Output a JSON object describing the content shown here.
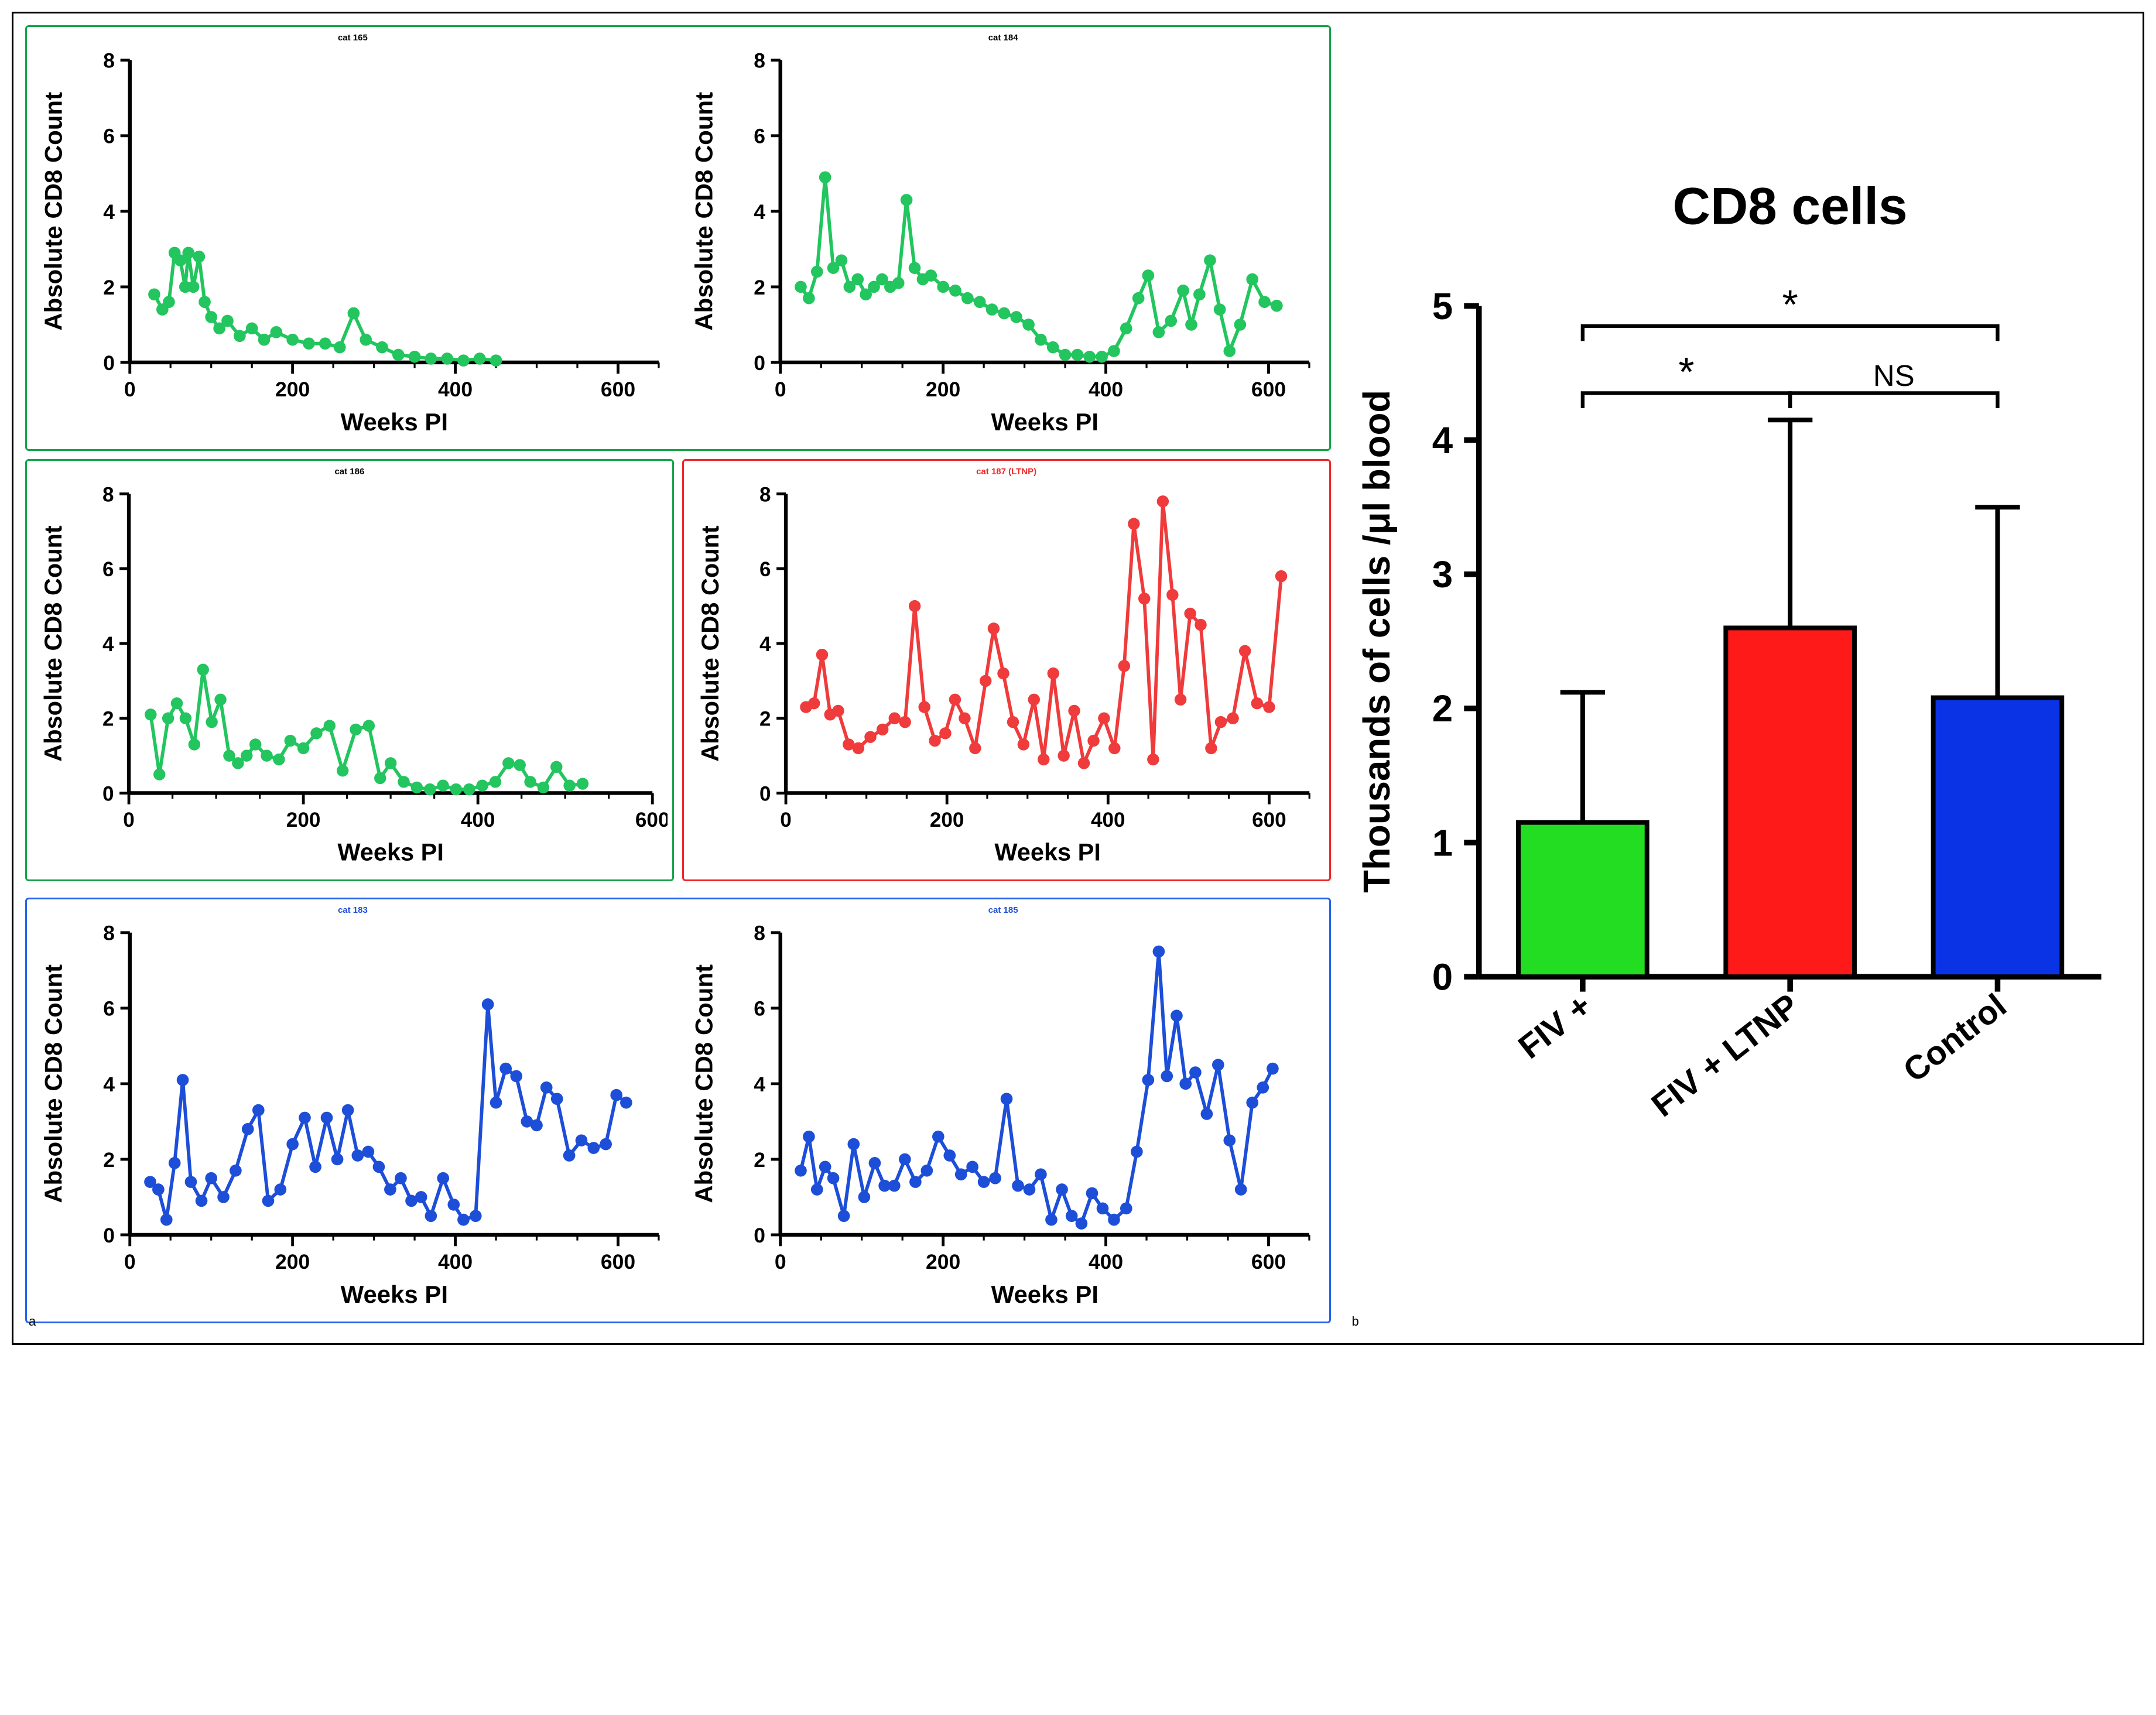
{
  "line_axis": {
    "xlabel": "Weeks PI",
    "ylabel": "Absolute CD8 Count",
    "xlim": [
      0,
      650
    ],
    "ylim": [
      0,
      8
    ],
    "ytick_step": 2,
    "xtick_step": 200,
    "label_fontsize": 13,
    "title_fontsize": 15
  },
  "groups": {
    "fiv_pos": {
      "border_color": "#16a34a",
      "point_color": "#22c55e",
      "title_color": "#000000"
    },
    "ltnp": {
      "border_color": "#ef2828",
      "point_color": "#ef3b3b",
      "title_color": "#ef2828"
    },
    "control": {
      "border_color": "#2563eb",
      "point_color": "#1d4ed8",
      "title_color": "#1d4ed8"
    }
  },
  "line_charts": {
    "cat165": {
      "title": "cat 165",
      "group": "fiv_pos",
      "xmax": 650,
      "points": [
        [
          30,
          1.8
        ],
        [
          40,
          1.4
        ],
        [
          48,
          1.6
        ],
        [
          55,
          2.9
        ],
        [
          62,
          2.7
        ],
        [
          68,
          2.0
        ],
        [
          72,
          2.9
        ],
        [
          78,
          2.0
        ],
        [
          85,
          2.8
        ],
        [
          92,
          1.6
        ],
        [
          100,
          1.2
        ],
        [
          110,
          0.9
        ],
        [
          120,
          1.1
        ],
        [
          135,
          0.7
        ],
        [
          150,
          0.9
        ],
        [
          165,
          0.6
        ],
        [
          180,
          0.8
        ],
        [
          200,
          0.6
        ],
        [
          220,
          0.5
        ],
        [
          240,
          0.5
        ],
        [
          258,
          0.4
        ],
        [
          275,
          1.3
        ],
        [
          290,
          0.6
        ],
        [
          310,
          0.4
        ],
        [
          330,
          0.2
        ],
        [
          350,
          0.15
        ],
        [
          370,
          0.1
        ],
        [
          390,
          0.1
        ],
        [
          410,
          0.05
        ],
        [
          430,
          0.1
        ],
        [
          450,
          0.05
        ]
      ]
    },
    "cat184": {
      "title": "cat 184",
      "group": "fiv_pos",
      "xmax": 650,
      "points": [
        [
          25,
          2.0
        ],
        [
          35,
          1.7
        ],
        [
          45,
          2.4
        ],
        [
          55,
          4.9
        ],
        [
          65,
          2.5
        ],
        [
          75,
          2.7
        ],
        [
          85,
          2.0
        ],
        [
          95,
          2.2
        ],
        [
          105,
          1.8
        ],
        [
          115,
          2.0
        ],
        [
          125,
          2.2
        ],
        [
          135,
          2.0
        ],
        [
          145,
          2.1
        ],
        [
          155,
          4.3
        ],
        [
          165,
          2.5
        ],
        [
          175,
          2.2
        ],
        [
          185,
          2.3
        ],
        [
          200,
          2.0
        ],
        [
          215,
          1.9
        ],
        [
          230,
          1.7
        ],
        [
          245,
          1.6
        ],
        [
          260,
          1.4
        ],
        [
          275,
          1.3
        ],
        [
          290,
          1.2
        ],
        [
          305,
          1.0
        ],
        [
          320,
          0.6
        ],
        [
          335,
          0.4
        ],
        [
          350,
          0.2
        ],
        [
          365,
          0.2
        ],
        [
          380,
          0.15
        ],
        [
          395,
          0.15
        ],
        [
          410,
          0.3
        ],
        [
          425,
          0.9
        ],
        [
          440,
          1.7
        ],
        [
          452,
          2.3
        ],
        [
          465,
          0.8
        ],
        [
          480,
          1.1
        ],
        [
          495,
          1.9
        ],
        [
          505,
          1.0
        ],
        [
          515,
          1.8
        ],
        [
          528,
          2.7
        ],
        [
          540,
          1.4
        ],
        [
          552,
          0.3
        ],
        [
          565,
          1.0
        ],
        [
          580,
          2.2
        ],
        [
          595,
          1.6
        ],
        [
          610,
          1.5
        ]
      ]
    },
    "cat186": {
      "title": "cat 186",
      "group": "fiv_pos",
      "xmax": 600,
      "points": [
        [
          25,
          2.1
        ],
        [
          35,
          0.5
        ],
        [
          45,
          2.0
        ],
        [
          55,
          2.4
        ],
        [
          65,
          2.0
        ],
        [
          75,
          1.3
        ],
        [
          85,
          3.3
        ],
        [
          95,
          1.9
        ],
        [
          105,
          2.5
        ],
        [
          115,
          1.0
        ],
        [
          125,
          0.8
        ],
        [
          135,
          1.0
        ],
        [
          145,
          1.3
        ],
        [
          158,
          1.0
        ],
        [
          172,
          0.9
        ],
        [
          185,
          1.4
        ],
        [
          200,
          1.2
        ],
        [
          215,
          1.6
        ],
        [
          230,
          1.8
        ],
        [
          245,
          0.6
        ],
        [
          260,
          1.7
        ],
        [
          275,
          1.8
        ],
        [
          288,
          0.4
        ],
        [
          300,
          0.8
        ],
        [
          315,
          0.3
        ],
        [
          330,
          0.15
        ],
        [
          345,
          0.1
        ],
        [
          360,
          0.2
        ],
        [
          375,
          0.1
        ],
        [
          390,
          0.1
        ],
        [
          405,
          0.2
        ],
        [
          420,
          0.3
        ],
        [
          435,
          0.8
        ],
        [
          448,
          0.75
        ],
        [
          460,
          0.3
        ],
        [
          475,
          0.15
        ],
        [
          490,
          0.7
        ],
        [
          505,
          0.2
        ],
        [
          520,
          0.25
        ]
      ]
    },
    "cat187": {
      "title": "cat 187 (LTNP)",
      "group": "ltnp",
      "xmax": 650,
      "points": [
        [
          25,
          2.3
        ],
        [
          35,
          2.4
        ],
        [
          45,
          3.7
        ],
        [
          55,
          2.1
        ],
        [
          65,
          2.2
        ],
        [
          78,
          1.3
        ],
        [
          90,
          1.2
        ],
        [
          105,
          1.5
        ],
        [
          120,
          1.7
        ],
        [
          135,
          2.0
        ],
        [
          148,
          1.9
        ],
        [
          160,
          5.0
        ],
        [
          172,
          2.3
        ],
        [
          185,
          1.4
        ],
        [
          198,
          1.6
        ],
        [
          210,
          2.5
        ],
        [
          222,
          2.0
        ],
        [
          235,
          1.2
        ],
        [
          248,
          3.0
        ],
        [
          258,
          4.4
        ],
        [
          270,
          3.2
        ],
        [
          282,
          1.9
        ],
        [
          295,
          1.3
        ],
        [
          308,
          2.5
        ],
        [
          320,
          0.9
        ],
        [
          332,
          3.2
        ],
        [
          345,
          1.0
        ],
        [
          358,
          2.2
        ],
        [
          370,
          0.8
        ],
        [
          382,
          1.4
        ],
        [
          395,
          2.0
        ],
        [
          408,
          1.2
        ],
        [
          420,
          3.4
        ],
        [
          432,
          7.2
        ],
        [
          445,
          5.2
        ],
        [
          456,
          0.9
        ],
        [
          468,
          7.8
        ],
        [
          480,
          5.3
        ],
        [
          490,
          2.5
        ],
        [
          502,
          4.8
        ],
        [
          515,
          4.5
        ],
        [
          528,
          1.2
        ],
        [
          540,
          1.9
        ],
        [
          555,
          2.0
        ],
        [
          570,
          3.8
        ],
        [
          585,
          2.4
        ],
        [
          600,
          2.3
        ],
        [
          615,
          5.8
        ]
      ]
    },
    "cat183": {
      "title": "cat 183",
      "group": "control",
      "xmax": 650,
      "points": [
        [
          25,
          1.4
        ],
        [
          35,
          1.2
        ],
        [
          45,
          0.4
        ],
        [
          55,
          1.9
        ],
        [
          65,
          4.1
        ],
        [
          75,
          1.4
        ],
        [
          88,
          0.9
        ],
        [
          100,
          1.5
        ],
        [
          115,
          1.0
        ],
        [
          130,
          1.7
        ],
        [
          145,
          2.8
        ],
        [
          158,
          3.3
        ],
        [
          170,
          0.9
        ],
        [
          185,
          1.2
        ],
        [
          200,
          2.4
        ],
        [
          215,
          3.1
        ],
        [
          228,
          1.8
        ],
        [
          242,
          3.1
        ],
        [
          255,
          2.0
        ],
        [
          268,
          3.3
        ],
        [
          280,
          2.1
        ],
        [
          293,
          2.2
        ],
        [
          306,
          1.8
        ],
        [
          320,
          1.2
        ],
        [
          333,
          1.5
        ],
        [
          346,
          0.9
        ],
        [
          358,
          1.0
        ],
        [
          370,
          0.5
        ],
        [
          385,
          1.5
        ],
        [
          398,
          0.8
        ],
        [
          410,
          0.4
        ],
        [
          425,
          0.5
        ],
        [
          440,
          6.1
        ],
        [
          450,
          3.5
        ],
        [
          462,
          4.4
        ],
        [
          475,
          4.2
        ],
        [
          488,
          3.0
        ],
        [
          500,
          2.9
        ],
        [
          512,
          3.9
        ],
        [
          525,
          3.6
        ],
        [
          540,
          2.1
        ],
        [
          555,
          2.5
        ],
        [
          570,
          2.3
        ],
        [
          585,
          2.4
        ],
        [
          598,
          3.7
        ],
        [
          610,
          3.5
        ]
      ]
    },
    "cat185": {
      "title": "cat 185",
      "group": "control",
      "xmax": 650,
      "points": [
        [
          25,
          1.7
        ],
        [
          35,
          2.6
        ],
        [
          45,
          1.2
        ],
        [
          55,
          1.8
        ],
        [
          65,
          1.5
        ],
        [
          78,
          0.5
        ],
        [
          90,
          2.4
        ],
        [
          103,
          1.0
        ],
        [
          116,
          1.9
        ],
        [
          128,
          1.3
        ],
        [
          140,
          1.3
        ],
        [
          153,
          2.0
        ],
        [
          166,
          1.4
        ],
        [
          180,
          1.7
        ],
        [
          194,
          2.6
        ],
        [
          208,
          2.1
        ],
        [
          222,
          1.6
        ],
        [
          236,
          1.8
        ],
        [
          250,
          1.4
        ],
        [
          264,
          1.5
        ],
        [
          278,
          3.6
        ],
        [
          292,
          1.3
        ],
        [
          306,
          1.2
        ],
        [
          320,
          1.6
        ],
        [
          333,
          0.4
        ],
        [
          346,
          1.2
        ],
        [
          358,
          0.5
        ],
        [
          370,
          0.3
        ],
        [
          383,
          1.1
        ],
        [
          396,
          0.7
        ],
        [
          410,
          0.4
        ],
        [
          425,
          0.7
        ],
        [
          438,
          2.2
        ],
        [
          452,
          4.1
        ],
        [
          465,
          7.5
        ],
        [
          475,
          4.2
        ],
        [
          487,
          5.8
        ],
        [
          498,
          4.0
        ],
        [
          510,
          4.3
        ],
        [
          524,
          3.2
        ],
        [
          538,
          4.5
        ],
        [
          552,
          2.5
        ],
        [
          566,
          1.2
        ],
        [
          580,
          3.5
        ],
        [
          593,
          3.9
        ],
        [
          605,
          4.4
        ]
      ]
    }
  },
  "bar_chart": {
    "title": "CD8 cells",
    "ylabel": "Thousands of cells /μl blood",
    "ylim": [
      0,
      5
    ],
    "ytick_step": 1,
    "categories": [
      "FIV +",
      "FIV + LTNP",
      "Control"
    ],
    "values": [
      1.15,
      2.6,
      2.08
    ],
    "errors": [
      0.97,
      1.55,
      1.42
    ],
    "bar_colors": [
      "#22dd22",
      "#ff1a1a",
      "#0b33e6"
    ],
    "bar_border": "#000000",
    "bar_width": 0.62,
    "axis_width": 3,
    "comparisons": [
      {
        "from": 0,
        "to": 1,
        "label": "*",
        "y": 4.35
      },
      {
        "from": 1,
        "to": 2,
        "label": "NS",
        "y": 4.35
      },
      {
        "from": 0,
        "to": 2,
        "label": "*",
        "y": 4.85
      }
    ]
  },
  "panel_labels": {
    "left": "a",
    "right": "b"
  }
}
